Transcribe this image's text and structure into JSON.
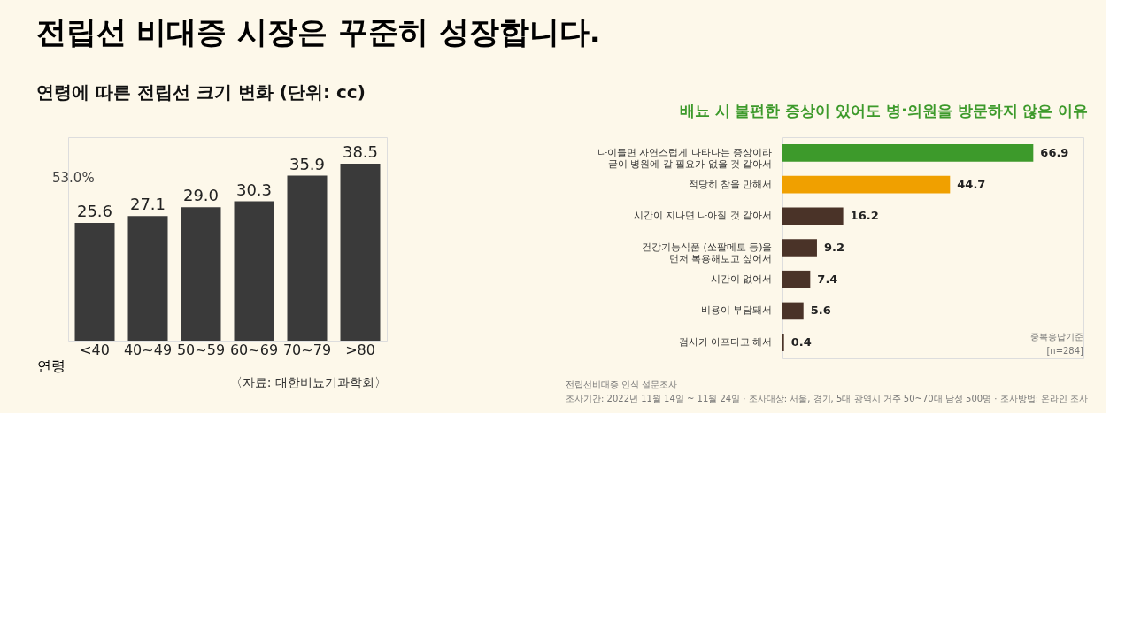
{
  "chart_data": [
    {
      "type": "bar",
      "title": "연령에 따른 전립선 크기 변화 (단위: cc)",
      "xlabel": "연령",
      "categories": [
        "<40",
        "40~49",
        "50~59",
        "60~69",
        "70~79",
        ">80"
      ],
      "values": [
        25.6,
        27.1,
        29.0,
        30.3,
        35.9,
        38.5
      ],
      "value_labels": [
        "25.6",
        "27.1",
        "29.0",
        "30.3",
        "35.9",
        "38.5"
      ],
      "color": "#3a3a3a",
      "annotations": [
        "전립선 비대증 시장은 꾸준히 성장합니다.",
        "53.0%",
        "〈자료: 대한비뇨기과학회〉"
      ]
    },
    {
      "type": "bar",
      "orientation": "horizontal",
      "title": "배뇨 시 불편한 증상이 있어도 병·의원을 방문하지 않은 이유",
      "categories": [
        "나이들면 자연스럽게 나타나는 증상이라\n굳이 병원에 갈 필요가 없을 것 같아서",
        "적당히 참을 만해서",
        "시간이 지나면 나아질 것 같아서",
        "건강기능식품 (쏘팔메토 등)을\n먼저 복용해보고 싶어서",
        "시간이 없어서",
        "비용이 부담돼서",
        "검사가 아프다고 해서"
      ],
      "values": [
        66.9,
        44.7,
        16.2,
        9.2,
        7.4,
        5.6,
        0.4
      ],
      "colors": [
        "#3d9a2b",
        "#f0a000",
        "#4a3328",
        "#4a3328",
        "#4a3328",
        "#4a3328",
        "#4a3328"
      ],
      "data_labels": true,
      "annotations": [
        "중복응답기준",
        "[n=284]",
        "전립선비대증 인식 설문조사",
        "조사기간: 2022년 11월 14일 ~ 11월 24일 · 조사대상: 서울, 경기, 5대 광역시 거주 50~70대 남성 500명 · 조사방법: 온라인 조사"
      ]
    }
  ]
}
